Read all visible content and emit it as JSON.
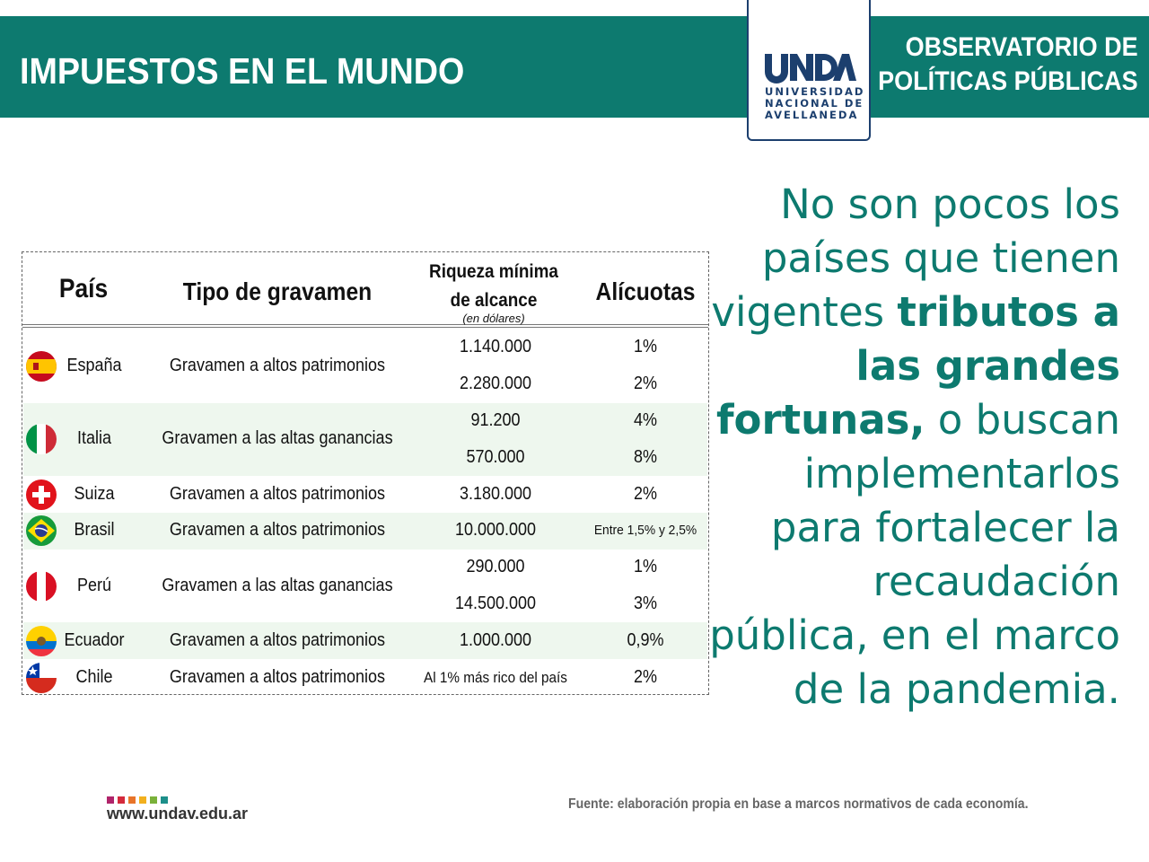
{
  "header": {
    "title": "IMPUESTOS EN EL MUNDO",
    "observatory_line1": "OBSERVATORIO DE",
    "observatory_line2": "POLÍTICAS PÚBLICAS",
    "logo_mark": "UNDAV",
    "logo_line1": "UNIVERSIDAD",
    "logo_line2": "NACIONAL DE",
    "logo_line3": "AVELLANEDA",
    "brand_color": "#0d7a6f",
    "logo_color": "#1c3f6e"
  },
  "headline": {
    "part1": "No son pocos los países que tienen vigentes ",
    "bold": "tributos a las grandes fortunas,",
    "part2": " o buscan implementarlos para fortalecer la recaudación pública, en el marco de la pandemia."
  },
  "table": {
    "headers": {
      "country": "País",
      "type": "Tipo de gravamen",
      "wealth_line1": "Riqueza mínima",
      "wealth_line2": "de alcance",
      "wealth_note": "(en dólares)",
      "rates": "Alícuotas"
    },
    "countries": [
      {
        "name": "España",
        "flag": "spain-flag-icon",
        "type": "Gravamen a altos patrimonios",
        "tiers": [
          {
            "wealth": "1.140.000",
            "rate": "1%"
          },
          {
            "wealth": "2.280.000",
            "rate": "2%"
          }
        ],
        "shaded": false
      },
      {
        "name": "Italia",
        "flag": "italy-flag-icon",
        "type": "Gravamen a las altas ganancias",
        "tiers": [
          {
            "wealth": "91.200",
            "rate": "4%"
          },
          {
            "wealth": "570.000",
            "rate": "8%"
          }
        ],
        "shaded": true
      },
      {
        "name": "Suiza",
        "flag": "switzerland-flag-icon",
        "type": "Gravamen a altos patrimonios",
        "tiers": [
          {
            "wealth": "3.180.000",
            "rate": "2%"
          }
        ],
        "shaded": false
      },
      {
        "name": "Brasil",
        "flag": "brazil-flag-icon",
        "type": "Gravamen a altos patrimonios",
        "tiers": [
          {
            "wealth": "10.000.000",
            "rate": "Entre 1,5% y 2,5%"
          }
        ],
        "shaded": true
      },
      {
        "name": "Perú",
        "flag": "peru-flag-icon",
        "type": "Gravamen a las altas ganancias",
        "tiers": [
          {
            "wealth": "290.000",
            "rate": "1%"
          },
          {
            "wealth": "14.500.000",
            "rate": "3%"
          }
        ],
        "shaded": false
      },
      {
        "name": "Ecuador",
        "flag": "ecuador-flag-icon",
        "type": "Gravamen a altos patrimonios",
        "tiers": [
          {
            "wealth": "1.000.000",
            "rate": "0,9%"
          }
        ],
        "shaded": true
      },
      {
        "name": "Chile",
        "flag": "chile-flag-icon",
        "type": "Gravamen a altos patrimonios",
        "tiers": [
          {
            "wealth": "Al 1% más rico del país",
            "rate": "2%"
          }
        ],
        "shaded": false
      }
    ],
    "shade_color": "#eef7ee"
  },
  "footer": {
    "url": "www.undav.edu.ar",
    "source": "Fuente: elaboración propia en base a marcos normativos de cada economía.",
    "dot_colors": [
      "#b0246a",
      "#d42a3c",
      "#e8742a",
      "#f2b01e",
      "#7ab13a",
      "#1d8f8a"
    ]
  }
}
